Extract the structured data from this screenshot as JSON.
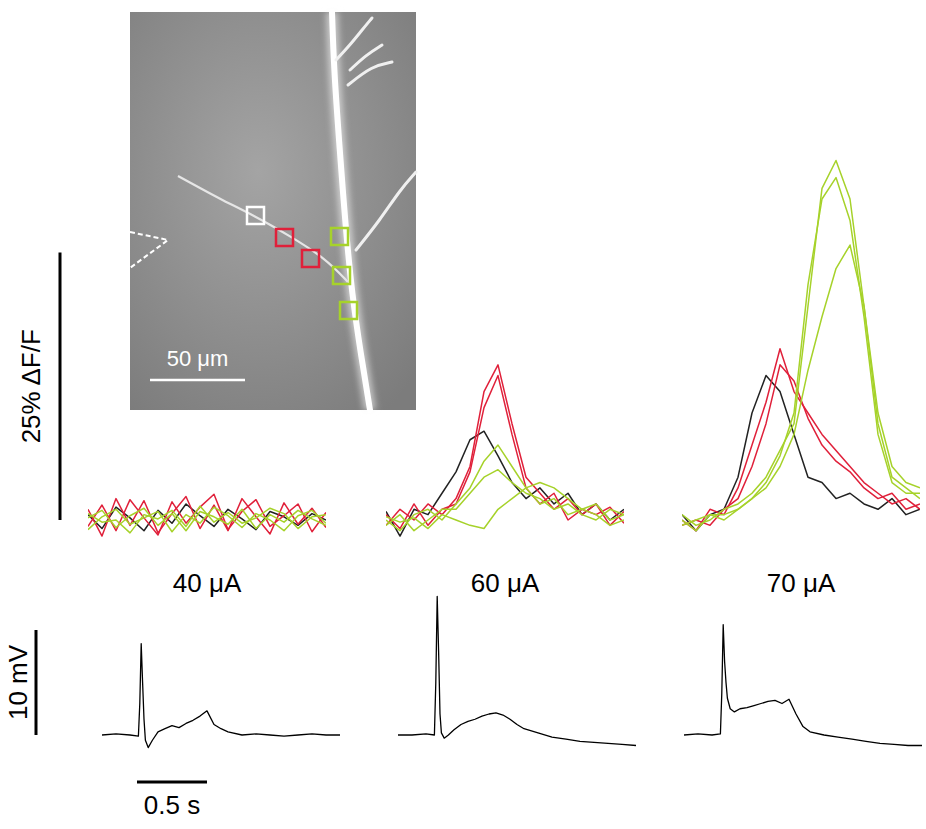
{
  "image": {
    "scale_bar": {
      "label": "50 μm",
      "value": 50
    }
  },
  "scale_bars": {
    "fluorescence": {
      "label": "25% ΔF/F",
      "value": 25
    },
    "voltage": {
      "label": "10 mV",
      "value": 10
    },
    "time": {
      "label": "0.5 s",
      "value": 0.5
    }
  },
  "chart_data": [
    {
      "type": "line",
      "title": "40 μA",
      "tick_labels": false,
      "x": [
        0,
        0.1,
        0.2,
        0.3,
        0.4,
        0.5,
        0.6,
        0.7,
        0.8,
        0.9,
        1.0,
        1.1,
        1.2,
        1.3,
        1.4,
        1.5,
        1.6,
        1.7
      ],
      "xlim": [
        0,
        1.7
      ],
      "ylim": [
        -4,
        36
      ],
      "series": [
        {
          "color": "#222222",
          "values": [
            0.5,
            -0.8,
            1.2,
            0.2,
            -1.0,
            0.9,
            -0.3,
            1.5,
            0.4,
            -0.6,
            1.0,
            0.1,
            -0.9,
            0.8,
            0.3,
            -0.5,
            0.6,
            0.0
          ]
        },
        {
          "color": "#e0203a",
          "values": [
            1.0,
            -1.5,
            2.0,
            -0.5,
            1.8,
            -1.2,
            0.6,
            2.2,
            -0.8,
            1.4,
            -1.0,
            2.0,
            0.3,
            -1.3,
            1.6,
            -0.4,
            1.1,
            -0.7
          ]
        },
        {
          "color": "#e0203a",
          "values": [
            -0.6,
            1.4,
            -1.0,
            1.9,
            0.2,
            -1.4,
            1.7,
            -0.3,
            1.2,
            2.4,
            -0.9,
            0.8,
            1.9,
            -0.6,
            0.4,
            1.5,
            -1.1,
            0.7
          ]
        },
        {
          "color": "#a6d22a",
          "values": [
            0.2,
            0.9,
            -0.7,
            0.4,
            1.1,
            -0.5,
            0.6,
            -1.0,
            0.8,
            0.3,
            -0.4,
            1.0,
            -0.8,
            0.5,
            -0.2,
            0.9,
            0.1,
            -0.5
          ]
        },
        {
          "color": "#a6d22a",
          "values": [
            -0.9,
            0.3,
            1.0,
            -0.4,
            0.2,
            0.8,
            -1.1,
            0.5,
            -0.3,
            1.2,
            0.4,
            -0.7,
            0.6,
            0.0,
            -1.0,
            0.4,
            0.9,
            -0.3
          ]
        },
        {
          "color": "#a6d22a",
          "values": [
            0.6,
            -0.2,
            0.0,
            -1.2,
            0.5,
            0.1,
            0.9,
            -0.6,
            1.3,
            -0.2,
            0.7,
            -0.3,
            0.2,
            1.1,
            0.6,
            -0.8,
            0.3,
            0.5
          ]
        }
      ]
    },
    {
      "type": "line",
      "title": "60 μA",
      "tick_labels": false,
      "x": [
        0,
        0.1,
        0.2,
        0.3,
        0.4,
        0.5,
        0.6,
        0.7,
        0.8,
        0.9,
        1.0,
        1.1,
        1.2,
        1.3,
        1.4,
        1.5,
        1.6,
        1.7
      ],
      "xlim": [
        0,
        1.7
      ],
      "ylim": [
        -4,
        36
      ],
      "series": [
        {
          "color": "#222222",
          "values": [
            0.8,
            -1.5,
            1.0,
            0.5,
            2.5,
            4.5,
            7.5,
            8.3,
            6.0,
            3.5,
            2.0,
            3.0,
            1.5,
            2.5,
            0.5,
            1.5,
            0.0,
            1.0
          ]
        },
        {
          "color": "#e0203a",
          "values": [
            -0.5,
            1.0,
            0.0,
            1.5,
            0.5,
            2.0,
            5.0,
            12.0,
            14.5,
            9.0,
            4.0,
            2.5,
            1.0,
            2.0,
            0.5,
            1.5,
            -0.5,
            0.8
          ]
        },
        {
          "color": "#e0203a",
          "values": [
            0.5,
            -0.8,
            1.5,
            -0.5,
            1.0,
            1.5,
            4.5,
            10.5,
            13.5,
            8.0,
            3.0,
            1.5,
            2.5,
            0.0,
            1.0,
            0.5,
            1.2,
            -0.3
          ]
        },
        {
          "color": "#a6d22a",
          "values": [
            0.0,
            -1.0,
            0.5,
            1.0,
            0.0,
            1.5,
            3.0,
            5.5,
            7.0,
            5.0,
            3.0,
            1.5,
            2.0,
            0.5,
            1.0,
            1.5,
            0.0,
            0.5
          ]
        },
        {
          "color": "#a6d22a",
          "values": [
            -0.5,
            0.5,
            -1.0,
            0.0,
            1.0,
            1.0,
            2.5,
            4.0,
            4.7,
            3.5,
            2.5,
            2.0,
            1.0,
            1.5,
            0.5,
            0.0,
            1.0,
            0.5
          ]
        },
        {
          "color": "#a6d22a",
          "values": [
            0.3,
            -0.2,
            0.2,
            -0.8,
            0.5,
            0.0,
            -0.5,
            -0.8,
            1.0,
            2.0,
            3.0,
            3.5,
            3.0,
            2.0,
            1.0,
            0.5,
            -0.5,
            0.0
          ]
        }
      ]
    },
    {
      "type": "line",
      "title": "70 μA",
      "tick_labels": false,
      "x": [
        0,
        0.1,
        0.2,
        0.3,
        0.4,
        0.5,
        0.6,
        0.7,
        0.8,
        0.9,
        1.0,
        1.1,
        1.2,
        1.3,
        1.4,
        1.5,
        1.6,
        1.7
      ],
      "xlim": [
        0,
        1.7
      ],
      "ylim": [
        -4,
        36
      ],
      "series": [
        {
          "color": "#222222",
          "values": [
            0.5,
            -1.0,
            0.5,
            1.0,
            4.0,
            10.0,
            13.5,
            12.0,
            8.0,
            4.0,
            3.5,
            2.0,
            2.5,
            1.5,
            1.0,
            2.0,
            0.5,
            1.0
          ]
        },
        {
          "color": "#e0203a",
          "values": [
            0.0,
            -1.0,
            1.0,
            0.5,
            3.0,
            7.0,
            11.0,
            16.0,
            12.0,
            10.0,
            8.0,
            6.5,
            5.0,
            3.5,
            2.5,
            1.5,
            2.0,
            1.0
          ]
        },
        {
          "color": "#e0203a",
          "values": [
            -0.5,
            0.0,
            -0.5,
            1.0,
            2.0,
            5.0,
            9.0,
            14.5,
            13.0,
            9.5,
            7.0,
            5.5,
            4.5,
            3.0,
            2.0,
            2.5,
            1.0,
            1.5
          ]
        },
        {
          "color": "#a6d22a",
          "values": [
            0.5,
            -0.5,
            0.0,
            1.0,
            1.5,
            2.5,
            4.0,
            6.5,
            9.0,
            20.0,
            31.0,
            33.6,
            30.0,
            20.0,
            9.0,
            4.0,
            3.0,
            2.0
          ]
        },
        {
          "color": "#a6d22a",
          "values": [
            0.0,
            -1.0,
            0.5,
            0.5,
            1.0,
            2.0,
            3.5,
            6.0,
            10.0,
            22.0,
            30.0,
            32.0,
            28.0,
            19.0,
            8.0,
            3.5,
            2.5,
            2.5
          ]
        },
        {
          "color": "#a6d22a",
          "values": [
            -0.5,
            0.0,
            0.5,
            0.0,
            1.0,
            2.0,
            3.0,
            5.0,
            8.0,
            14.0,
            19.0,
            23.5,
            25.7,
            20.0,
            10.0,
            5.0,
            3.5,
            3.0
          ]
        }
      ]
    },
    {
      "type": "line",
      "tick_labels": false,
      "x": [
        0,
        0.1,
        0.2,
        0.26,
        0.27,
        0.28,
        0.29,
        0.3,
        0.31,
        0.33,
        0.36,
        0.4,
        0.45,
        0.5,
        0.55,
        0.6,
        0.65,
        0.7,
        0.75,
        0.8,
        0.85,
        0.9,
        1.0,
        1.1,
        1.2,
        1.3,
        1.4,
        1.5,
        1.6,
        1.7
      ],
      "xlim": [
        0,
        1.7
      ],
      "ylim": [
        -3,
        14
      ],
      "series": [
        {
          "color": "#000000",
          "values": [
            0,
            0.1,
            0,
            -0.1,
            3,
            8.7,
            5,
            1.5,
            -0.5,
            -1.2,
            -0.5,
            0.3,
            0.6,
            0.9,
            0.7,
            1.1,
            1.4,
            1.8,
            2.3,
            1.0,
            0.6,
            0.3,
            0.0,
            0.1,
            0,
            -0.1,
            0,
            0.1,
            0,
            0
          ]
        }
      ]
    },
    {
      "type": "line",
      "tick_labels": false,
      "x": [
        0,
        0.1,
        0.2,
        0.26,
        0.27,
        0.28,
        0.29,
        0.3,
        0.31,
        0.33,
        0.36,
        0.4,
        0.45,
        0.5,
        0.55,
        0.6,
        0.65,
        0.7,
        0.75,
        0.8,
        0.85,
        0.9,
        1.0,
        1.1,
        1.2,
        1.3,
        1.4,
        1.5,
        1.6,
        1.7
      ],
      "xlim": [
        0,
        1.7
      ],
      "ylim": [
        -3,
        14
      ],
      "series": [
        {
          "color": "#000000",
          "values": [
            0,
            0,
            0.1,
            0,
            5,
            13.2,
            8,
            2,
            0.2,
            -0.3,
            0.0,
            0.5,
            1.0,
            1.3,
            1.5,
            1.8,
            2.0,
            2.1,
            1.9,
            1.5,
            1.0,
            0.6,
            0.2,
            -0.2,
            -0.4,
            -0.6,
            -0.7,
            -0.8,
            -0.9,
            -1.0
          ]
        }
      ]
    },
    {
      "type": "line",
      "tick_labels": false,
      "x": [
        0,
        0.1,
        0.2,
        0.26,
        0.27,
        0.28,
        0.29,
        0.3,
        0.31,
        0.33,
        0.36,
        0.4,
        0.45,
        0.5,
        0.55,
        0.6,
        0.65,
        0.7,
        0.75,
        0.8,
        0.85,
        0.9,
        1.0,
        1.1,
        1.2,
        1.3,
        1.4,
        1.5,
        1.6,
        1.7
      ],
      "xlim": [
        0,
        1.7
      ],
      "ylim": [
        -3,
        14
      ],
      "series": [
        {
          "color": "#000000",
          "values": [
            0,
            0.1,
            0,
            0.1,
            4,
            10.5,
            7,
            5,
            3.5,
            2.5,
            2.2,
            2.5,
            2.6,
            2.8,
            3.0,
            3.2,
            3.3,
            3.0,
            3.4,
            2.0,
            0.8,
            0.3,
            0.0,
            -0.2,
            -0.4,
            -0.6,
            -0.8,
            -0.9,
            -1.0,
            -1.0
          ]
        }
      ]
    }
  ]
}
